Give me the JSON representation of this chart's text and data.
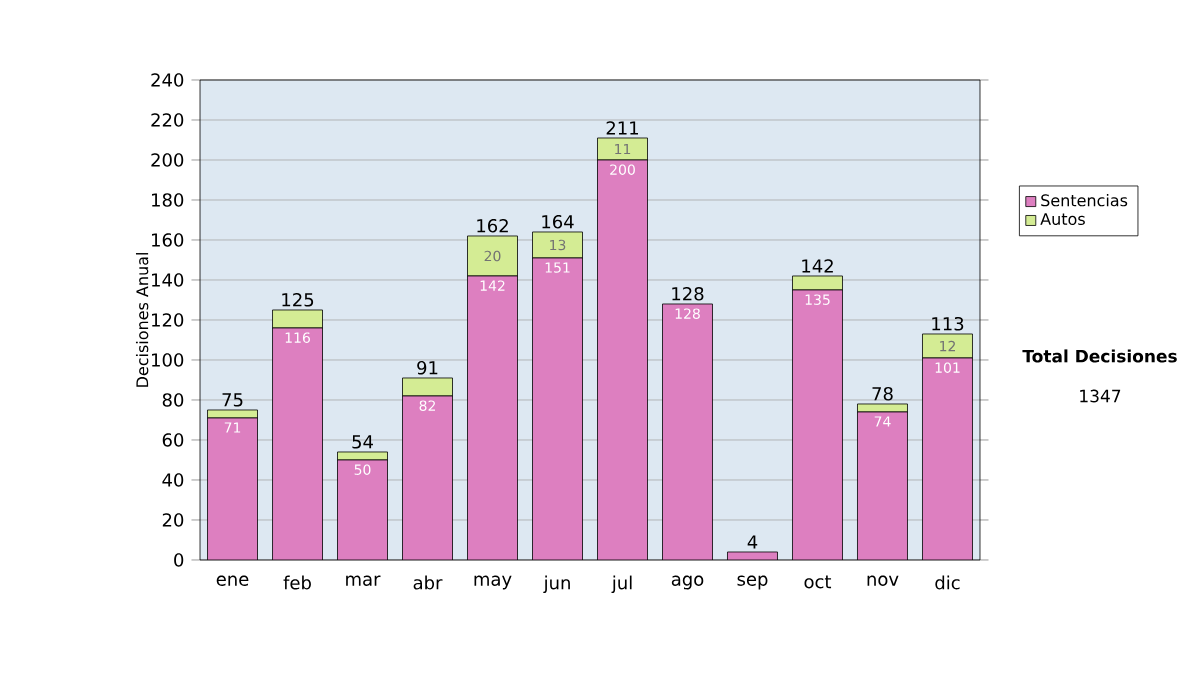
{
  "chart_data": {
    "type": "bar",
    "stacked": true,
    "ylabel": "Decisiones Anual",
    "categories": [
      "ene",
      "feb",
      "mar",
      "abr",
      "may",
      "jun",
      "jul",
      "ago",
      "sep",
      "oct",
      "nov",
      "dic"
    ],
    "series": [
      {
        "name": "Sentencias",
        "color": "#dd7fc0",
        "values": [
          71,
          116,
          50,
          82,
          142,
          151,
          200,
          128,
          4,
          135,
          74,
          101
        ],
        "value_labels": [
          "71",
          "116",
          "50",
          "82",
          "142",
          "151",
          "200",
          "128",
          null,
          "135",
          "74",
          "101"
        ]
      },
      {
        "name": "Autos",
        "color": "#d4ec94",
        "values": [
          4,
          9,
          4,
          9,
          20,
          13,
          11,
          0,
          0,
          7,
          4,
          12
        ],
        "value_labels": [
          null,
          null,
          null,
          null,
          "20",
          "13",
          "11",
          null,
          null,
          null,
          null,
          "12"
        ]
      }
    ],
    "totals": [
      "75",
      "125",
      "54",
      "91",
      "162",
      "164",
      "211",
      "128",
      "4",
      "142",
      "78",
      "113"
    ],
    "ylim": [
      0,
      240
    ],
    "yticks": [
      0,
      20,
      40,
      60,
      80,
      100,
      120,
      140,
      160,
      180,
      200,
      220,
      240
    ],
    "grid": "y",
    "legend": "right",
    "annotations": [
      "Total Decisiones",
      "1347"
    ]
  }
}
